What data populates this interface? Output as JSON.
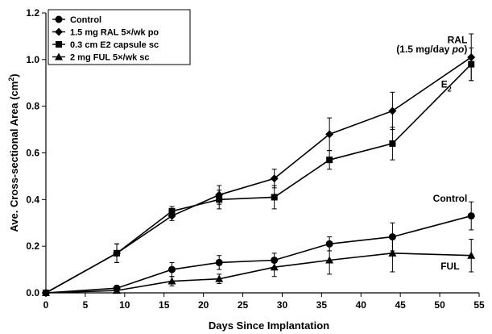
{
  "chart_data": {
    "type": "line",
    "xlabel": "Days Since Implantation",
    "ylabel": "Ave. Cross-sectional Area (cm",
    "ylabel_sup": "2",
    "ylabel_close": ")",
    "xlim": [
      0,
      55
    ],
    "ylim": [
      0,
      1.2
    ],
    "xticks": [
      0,
      5,
      10,
      15,
      20,
      25,
      30,
      35,
      40,
      45,
      50,
      55
    ],
    "yticks": [
      0.0,
      0.2,
      0.4,
      0.6,
      0.8,
      1.0,
      1.2
    ],
    "ytick_labels": [
      "0.0",
      "0.2",
      "0.4",
      "0.6",
      "0.8",
      "1.0",
      "1.2"
    ],
    "grid": false,
    "legend_position": "top-left",
    "x": [
      0,
      9,
      16,
      22,
      29,
      36,
      44,
      54
    ],
    "series": [
      {
        "name": "Control",
        "marker": "circle",
        "values": [
          0,
          0.02,
          0.1,
          0.13,
          0.14,
          0.21,
          0.24,
          0.33
        ],
        "errors": [
          0,
          0.01,
          0.03,
          0.03,
          0.03,
          0.03,
          0.06,
          0.06
        ]
      },
      {
        "name": "1.5 mg RAL 5×/wk po",
        "marker": "diamond",
        "values": [
          0,
          0.17,
          0.33,
          0.42,
          0.49,
          0.68,
          0.78,
          1.01
        ],
        "errors": [
          0,
          0.04,
          0.02,
          0.04,
          0.04,
          0.07,
          0.08,
          0.1
        ]
      },
      {
        "name": "0.3 cm E2 capsule sc",
        "marker": "square",
        "values": [
          0,
          0.17,
          0.35,
          0.4,
          0.41,
          0.57,
          0.64,
          0.98
        ],
        "errors": [
          0,
          0.04,
          0.02,
          0.04,
          0.05,
          0.04,
          0.07,
          0.07
        ]
      },
      {
        "name": "2 mg FUL 5×/wk sc",
        "marker": "triangle",
        "values": [
          0,
          0.01,
          0.05,
          0.06,
          0.11,
          0.14,
          0.17,
          0.16
        ],
        "errors": [
          0,
          0.01,
          0.02,
          0.02,
          0.04,
          0.06,
          0.08,
          0.07
        ]
      }
    ],
    "annotations": [
      {
        "id": "ral",
        "text": "RAL",
        "x": 53.5,
        "y": 1.07
      },
      {
        "id": "ral-dose",
        "text": "(1.5 mg/day ",
        "text_italic": "po",
        "text_end": ")",
        "x": 53.5,
        "y": 1.03
      },
      {
        "id": "e2",
        "text": "E",
        "sub": "2",
        "x": 51.5,
        "y": 0.88
      },
      {
        "id": "control",
        "text": "Control",
        "x": 53.5,
        "y": 0.39
      },
      {
        "id": "ful",
        "text": "FUL",
        "x": 52.5,
        "y": 0.1
      }
    ]
  }
}
